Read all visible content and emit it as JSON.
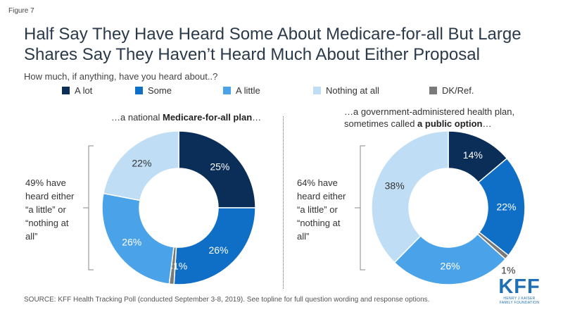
{
  "figure_label": "Figure 7",
  "title": "Half Say They Have Heard Some About Medicare-for-all But Large Shares Say They Haven’t Heard Much About Either Proposal",
  "question": "How much, if anything, have you heard about..?",
  "legend": [
    {
      "label": "A lot",
      "color": "#0b2e59"
    },
    {
      "label": "Some",
      "color": "#0f6fc6"
    },
    {
      "label": "A little",
      "color": "#4aa3e8"
    },
    {
      "label": "Nothing at all",
      "color": "#bfdef6"
    },
    {
      "label": "DK/Ref.",
      "color": "#7a7a7a"
    }
  ],
  "chart_data": [
    {
      "type": "pie",
      "donut": true,
      "heading_pre": "…a national ",
      "heading_bold": "Medicare-for-all plan",
      "heading_post": "…",
      "categories": [
        "A lot",
        "Some",
        "DK/Ref.",
        "A little",
        "Nothing at all"
      ],
      "values": [
        25,
        26,
        1,
        26,
        22
      ],
      "labels": [
        "25%",
        "26%",
        "<1%",
        "26%",
        "22%"
      ],
      "bracket_text": [
        "49% have",
        "heard either",
        "“a little” or",
        "“nothing at",
        "all”"
      ]
    },
    {
      "type": "pie",
      "donut": true,
      "heading_line1": "…a government-administered health plan,",
      "heading_pre": "sometimes called ",
      "heading_bold": "a public option",
      "heading_post": "…",
      "categories": [
        "A lot",
        "Some",
        "DK/Ref.",
        "A little",
        "Nothing at all"
      ],
      "values": [
        14,
        22,
        1,
        26,
        38
      ],
      "labels": [
        "14%",
        "22%",
        "1%",
        "26%",
        "38%"
      ],
      "bracket_text": [
        "64% have",
        "heard either",
        "“a little” or",
        "“nothing at",
        "all”"
      ]
    }
  ],
  "source": "SOURCE: KFF Health Tracking Poll (conducted September 3-8, 2019). See topline for full question wording and response options.",
  "logo": {
    "letters": "KFF",
    "line1": "HENRY J KAISER",
    "line2": "FAMILY FOUNDATION"
  }
}
